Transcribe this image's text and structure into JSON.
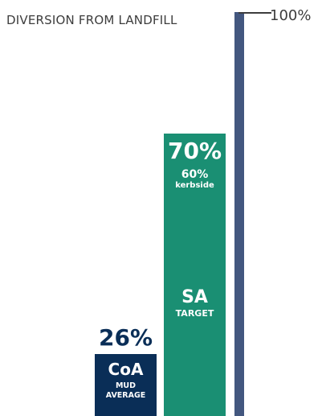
{
  "chart_data": {
    "type": "bar",
    "title": "DIVERSION FROM LANDFILL",
    "ylim": [
      0,
      100
    ],
    "max_label": "100%",
    "colors": {
      "target": "#1a8f73",
      "coa": "#0a2e57",
      "scale": "#43577f"
    },
    "bars": [
      {
        "key": "coa",
        "value": 26,
        "value_label": "26%",
        "name": "CoA",
        "sub1": "MUD",
        "sub2": "AVERAGE"
      },
      {
        "key": "target",
        "value": 70,
        "value_label": "70%",
        "sub_value_label": "60%",
        "sub_value_caption": "kerbside",
        "name": "SA",
        "name_sub": "TARGET"
      }
    ]
  }
}
